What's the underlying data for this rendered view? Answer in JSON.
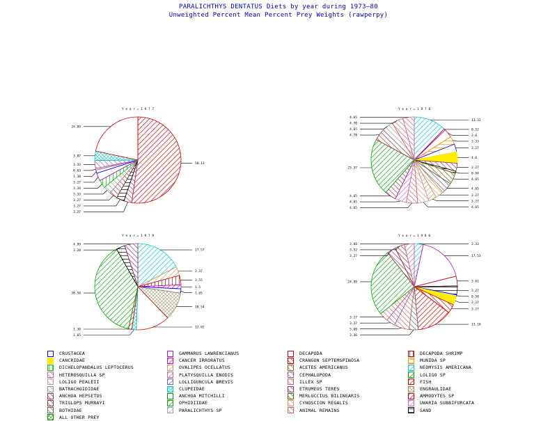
{
  "header": {
    "title": "PARALICHTHYS DENTATUS Diets by year during 1973—80",
    "subtitle": "Unweighted Percent Mean Percent Prey  Weights (rawperpy)"
  },
  "categories": [
    {
      "name": "CRUSTACEA",
      "color": "#0000ff",
      "pattern": "outline"
    },
    {
      "name": "GAMMARUS LAWRENCIANUS",
      "color": "#cc00cc",
      "pattern": "outline"
    },
    {
      "name": "DECAPODA",
      "color": "#cc0000",
      "pattern": "outline"
    },
    {
      "name": "DECAPODA SHRIMP",
      "color": "#cc0000",
      "pattern": "vert"
    },
    {
      "name": "CANCRIDAE",
      "color": "#ffee00",
      "pattern": "solid"
    },
    {
      "name": "CANCER IRRORATUS",
      "color": "#cc00cc",
      "pattern": "diag"
    },
    {
      "name": "CRANGON SEPTEMSPINOSA",
      "color": "#cc0000",
      "pattern": "diag"
    },
    {
      "name": "MUNIDA SP",
      "color": "#ff9900",
      "pattern": "horiz"
    },
    {
      "name": "DICHELOPANDALUS LEPTOCERUS",
      "color": "#00cc00",
      "pattern": "vert"
    },
    {
      "name": "OVALIPES OCELLATUS",
      "color": "#cc9966",
      "pattern": "diag"
    },
    {
      "name": "ACETES AMERICANUS",
      "color": "#996633",
      "pattern": "diag"
    },
    {
      "name": "NEOMYSIS AMERICANA",
      "color": "#00cccc",
      "pattern": "diag"
    },
    {
      "name": "HETEROSQUILLA SP",
      "color": "#cc6699",
      "pattern": "diag"
    },
    {
      "name": "PLATYSQUILLA ENODIS",
      "color": "#cc6699",
      "pattern": "diag"
    },
    {
      "name": "CEPHALOPODA",
      "color": "#996699",
      "pattern": "diag"
    },
    {
      "name": "LOLIGO SP",
      "color": "#00aa00",
      "pattern": "diag"
    },
    {
      "name": "LOLIGO PEALEII",
      "color": "#cc9999",
      "pattern": "diag"
    },
    {
      "name": "LOLLIGUNCULA BREVIS",
      "color": "#6666cc",
      "pattern": "diag"
    },
    {
      "name": "ILLEX SP",
      "color": "#cc6666",
      "pattern": "diag"
    },
    {
      "name": "FISH",
      "color": "#cc0000",
      "pattern": "diag"
    },
    {
      "name": "BATRACHOIDIDAE",
      "color": "#999999",
      "pattern": "diag"
    },
    {
      "name": "CLUPEIDAE",
      "color": "#00cccc",
      "pattern": "cross"
    },
    {
      "name": "ETRUMEUS TERES",
      "color": "#993366",
      "pattern": "diag"
    },
    {
      "name": "ENGRAULIDAE",
      "color": "#999966",
      "pattern": "cross"
    },
    {
      "name": "ANCHOA HEPSETUS",
      "color": "#993366",
      "pattern": "diag"
    },
    {
      "name": "ANCHOA MITCHILLI",
      "color": "#009900",
      "pattern": "outline"
    },
    {
      "name": "MERLUCCIUS BILINEARIS",
      "color": "#666600",
      "pattern": "diag"
    },
    {
      "name": "AMMODYTES SP",
      "color": "#cc0000",
      "pattern": "diag"
    },
    {
      "name": "TRIGLOPS MURRAYI",
      "color": "#993333",
      "pattern": "diag"
    },
    {
      "name": "OPHIDIIDAE",
      "color": "#00aa00",
      "pattern": "diag"
    },
    {
      "name": "CYNOSCION REGALIS",
      "color": "#cc9966",
      "pattern": "diag"
    },
    {
      "name": "UWARIA SUBBIFURCATA",
      "color": "#cc66cc",
      "pattern": "diag"
    },
    {
      "name": "BOTHIDAE",
      "color": "#666666",
      "pattern": "diag"
    },
    {
      "name": "PARALICHTHYS SP",
      "color": "#9999cc",
      "pattern": "diag"
    },
    {
      "name": "ANIMAL REMAINS",
      "color": "#cc6666",
      "pattern": "diag"
    },
    {
      "name": "SAND",
      "color": "#000000",
      "pattern": "horiz"
    },
    {
      "name": "ALL OTHER PREY",
      "color": "#009900",
      "pattern": "cross"
    }
  ],
  "chart_data": [
    {
      "type": "pie",
      "title": "Y e a r = 1 9 7 7",
      "slices": [
        {
          "category": "FISH",
          "value": 58.13,
          "label": "58.13"
        },
        {
          "category": "ANCHOA HEPSETUS",
          "value": 3.27,
          "label": "3.27"
        },
        {
          "category": "SAND",
          "value": 3.27,
          "label": "3.27"
        },
        {
          "category": "TRIGLOPS MURRAYI",
          "value": 3.27,
          "label": "3.27"
        },
        {
          "category": "BATRACHOIDIDAE",
          "value": 3.33,
          "label": "3.33"
        },
        {
          "category": "DICHELOPANDALUS LEPTOCERUS",
          "value": 3.34,
          "label": "3.34"
        },
        {
          "category": "GAMMARUS LAWRENCIANUS",
          "value": 3.27,
          "label": "3.27"
        },
        {
          "category": "CRUSTACEA",
          "value": 1.38,
          "label": "1.38"
        },
        {
          "category": "PLATYSQUILLA ENODIS",
          "value": 0.63,
          "label": "0.63"
        },
        {
          "category": "CEPHALOPODA",
          "value": 3.33,
          "label": "3.33"
        },
        {
          "category": "CLUPEIDAE",
          "value": 3.87,
          "label": "3.87"
        },
        {
          "category": "DECAPODA",
          "value": 24.09,
          "label": "24.09"
        }
      ]
    },
    {
      "type": "pie",
      "title": "Y e a r = 1 9 7 8",
      "slices": [
        {
          "category": "NEOMYSIS AMERICANA",
          "value": 13.33,
          "label": "13.33"
        },
        {
          "category": "DECAPODA",
          "value": 0.52,
          "label": "0.52"
        },
        {
          "category": "GAMMARUS LAWRENCIANUS",
          "value": 3.6,
          "label": "3.6"
        },
        {
          "category": "MUNIDA SP",
          "value": 3.33,
          "label": "3.33"
        },
        {
          "category": "CRUSTACEA",
          "value": 3.27,
          "label": "3.27"
        },
        {
          "category": "CANCRIDAE",
          "value": 4.6,
          "label": "4.6"
        },
        {
          "category": "ANCHOA HEPSETUS",
          "value": 3.27,
          "label": "3.27"
        },
        {
          "category": "SAND",
          "value": 0.94,
          "label": "0.94"
        },
        {
          "category": "MERLUCCIUS BILINEARIS",
          "value": 4.65,
          "label": "4.65"
        },
        {
          "category": "BOTHIDAE",
          "value": 4.65,
          "label": "4.65"
        },
        {
          "category": "CYNOSCION REGALIS",
          "value": 3.27,
          "label": "3.27"
        },
        {
          "category": "OVALIPES OCELLATUS",
          "value": 3.27,
          "label": "3.27"
        },
        {
          "category": "LOLIGO PEALEII",
          "value": 4.65,
          "label": "4.65"
        },
        {
          "category": "ANIMAL REMAINS",
          "value": 4.65,
          "label": "4.65"
        },
        {
          "category": "UWARIA SUBBIFURCATA",
          "value": 4.65,
          "label": "4.65"
        },
        {
          "category": "ETRUMEUS TERES",
          "value": 4.65,
          "label": "4.65"
        },
        {
          "category": "LOLIGO SP",
          "value": 23.37,
          "label": "23.37"
        },
        {
          "category": "TRIGLOPS MURRAYI",
          "value": 4.78,
          "label": "4.78"
        },
        {
          "category": "BATRACHOIDIDAE",
          "value": 4.65,
          "label": "4.65"
        },
        {
          "category": "ILLEX SP",
          "value": 4.7,
          "label": "4.70"
        },
        {
          "category": "HETEROSQUILLA SP",
          "value": 4.65,
          "label": "4.65"
        }
      ]
    },
    {
      "type": "pie",
      "title": "Y e a r = 1 9 7 9",
      "slices": [
        {
          "category": "NEOMYSIS AMERICANA",
          "value": 17.57,
          "label": "17.57"
        },
        {
          "category": "OVALIPES OCELLATUS",
          "value": 3.37,
          "label": "3.37"
        },
        {
          "category": "DECAPODA SHRIMP",
          "value": 3.55,
          "label": "3.55"
        },
        {
          "category": "CANCER IRRORATUS",
          "value": 1.5,
          "label": "1.5"
        },
        {
          "category": "CRUSTACEA",
          "value": 1.65,
          "label": "1.65"
        },
        {
          "category": "ENGRAULIDAE",
          "value": 10.54,
          "label": "10.54"
        },
        {
          "category": "DECAPODA",
          "value": 12.82,
          "label": "12.82"
        },
        {
          "category": "CLUPEIDAE",
          "value": 1.65,
          "label": "1.65"
        },
        {
          "category": "FISH",
          "value": 1.3,
          "label": "1.30"
        },
        {
          "category": "LOLIGO SP",
          "value": 38.58,
          "label": "38.58"
        },
        {
          "category": "SAND",
          "value": 3.28,
          "label": "3.28"
        },
        {
          "category": "ANCHOA HEPSETUS",
          "value": 4.99,
          "label": "4.99"
        }
      ]
    },
    {
      "type": "pie",
      "title": "Y e a r = 1 9 8 0",
      "slices": [
        {
          "category": "NEOMYSIS AMERICANA",
          "value": 3.33,
          "label": "3.33"
        },
        {
          "category": "GAMMARUS LAWRENCIANUS",
          "value": 17.53,
          "label": "17.53"
        },
        {
          "category": "DECAPODA",
          "value": 3.61,
          "label": "3.61"
        },
        {
          "category": "SAND",
          "value": 3.27,
          "label": "3.27"
        },
        {
          "category": "CRUSTACEA",
          "value": 0.58,
          "label": "0.58"
        },
        {
          "category": "CANCRIDAE",
          "value": 3.27,
          "label": "3.27"
        },
        {
          "category": "CRANGON SEPTEMSPINOSA",
          "value": 3.27,
          "label": "3.27"
        },
        {
          "category": "FISH",
          "value": 13.18,
          "label": "13.18"
        },
        {
          "category": "BOTHIDAE",
          "value": 3.36,
          "label": "3.36"
        },
        {
          "category": "ANIMAL REMAINS",
          "value": 5.6,
          "label": "5.60"
        },
        {
          "category": "CEPHALOPODA",
          "value": 3.27,
          "label": "3.27"
        },
        {
          "category": "ILLEX SP",
          "value": 3.27,
          "label": "3.27"
        },
        {
          "category": "LOLIGO SP",
          "value": 24.99,
          "label": "24.99"
        },
        {
          "category": "ANCHOA HEPSETUS",
          "value": 3.27,
          "label": "3.27"
        },
        {
          "category": "TRIGLOPS MURRAYI",
          "value": 3.52,
          "label": "3.52"
        },
        {
          "category": "PLATYSQUILLA ENODIS",
          "value": 3.66,
          "label": "3.66"
        }
      ]
    }
  ]
}
